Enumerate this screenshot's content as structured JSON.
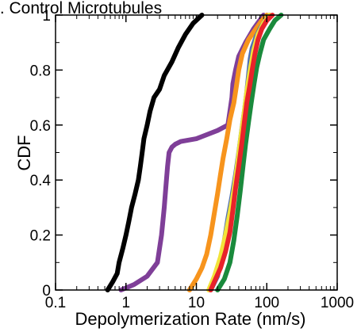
{
  "chart_data": {
    "type": "line",
    "title": "I. Control Microtubules",
    "xlabel": "Depolymerization Rate (nm/s)",
    "ylabel": "CDF",
    "x_scale": "log",
    "xlim": [
      0.1,
      1000
    ],
    "ylim": [
      0,
      1
    ],
    "x_ticks": [
      0.1,
      1,
      10,
      100,
      1000
    ],
    "x_tick_labels": [
      "0.1",
      "1",
      "10",
      "100",
      "1000"
    ],
    "y_ticks": [
      0,
      0.2,
      0.4,
      0.6,
      0.8,
      1
    ],
    "y_tick_labels": [
      "0",
      "0.2",
      "0.4",
      "0.6",
      "0.8",
      "1"
    ],
    "grid": false,
    "series": [
      {
        "color": "#000000",
        "x": [
          0.55,
          0.65,
          0.75,
          0.8,
          0.9,
          1.0,
          1.1,
          1.2,
          1.35,
          1.5,
          1.6,
          1.7,
          1.8,
          2.0,
          2.2,
          2.5,
          3.0,
          3.5,
          4.5,
          5.5,
          7.0,
          9.0,
          12.0
        ],
        "y": [
          0.0,
          0.03,
          0.06,
          0.1,
          0.15,
          0.2,
          0.25,
          0.3,
          0.35,
          0.4,
          0.45,
          0.5,
          0.55,
          0.6,
          0.65,
          0.7,
          0.73,
          0.78,
          0.83,
          0.88,
          0.93,
          0.97,
          1.0
        ]
      },
      {
        "color": "#7f3f98",
        "x": [
          0.85,
          1.3,
          2.0,
          2.8,
          3.2,
          3.5,
          3.7,
          3.9,
          4.1,
          4.5,
          5.0,
          6.0,
          10.0,
          20.0,
          28.0,
          30.0,
          32.0,
          33.0,
          36.0,
          40.0,
          50.0,
          65.0,
          90.0
        ],
        "y": [
          0.0,
          0.02,
          0.05,
          0.1,
          0.2,
          0.3,
          0.38,
          0.45,
          0.5,
          0.52,
          0.53,
          0.54,
          0.55,
          0.58,
          0.6,
          0.65,
          0.7,
          0.75,
          0.8,
          0.85,
          0.9,
          0.95,
          1.0
        ]
      },
      {
        "color": "#f7941d",
        "x": [
          8.0,
          10.0,
          12.0,
          14.0,
          16.0,
          18.0,
          20.0,
          22.0,
          24.0,
          27.0,
          30.0,
          34.0,
          37.0,
          40.0,
          45.0,
          55.0,
          70.0,
          85.0,
          100.0
        ],
        "y": [
          0.0,
          0.04,
          0.08,
          0.13,
          0.2,
          0.28,
          0.35,
          0.42,
          0.48,
          0.55,
          0.62,
          0.68,
          0.74,
          0.8,
          0.86,
          0.91,
          0.95,
          0.98,
          1.0
        ]
      },
      {
        "color": "#4f6fb3",
        "x": [
          16.0,
          20.0,
          22.0,
          25.0,
          28.0,
          32.0,
          36.0,
          40.0,
          44.0,
          48.0,
          52.0,
          55.0,
          58.0,
          62.0,
          70.0,
          80.0,
          95.0,
          110.0
        ],
        "y": [
          0.0,
          0.05,
          0.1,
          0.18,
          0.26,
          0.34,
          0.42,
          0.5,
          0.58,
          0.65,
          0.72,
          0.78,
          0.84,
          0.88,
          0.92,
          0.95,
          0.98,
          1.0
        ]
      },
      {
        "color": "#f2e33a",
        "x": [
          15.0,
          18.0,
          22.0,
          26.0,
          30.0,
          34.0,
          38.0,
          42.0,
          47.0,
          52.0,
          58.0,
          65.0,
          75.0,
          90.0,
          110.0
        ],
        "y": [
          0.0,
          0.05,
          0.12,
          0.2,
          0.28,
          0.36,
          0.45,
          0.54,
          0.63,
          0.72,
          0.8,
          0.87,
          0.93,
          0.97,
          1.0
        ]
      },
      {
        "color": "#1a8a3c",
        "x": [
          20.0,
          25.0,
          30.0,
          34.0,
          38.0,
          42.0,
          46.0,
          50.0,
          55.0,
          60.0,
          66.0,
          72.0,
          80.0,
          90.0,
          110.0,
          130.0,
          160.0
        ],
        "y": [
          0.0,
          0.04,
          0.1,
          0.18,
          0.27,
          0.36,
          0.45,
          0.53,
          0.61,
          0.68,
          0.75,
          0.81,
          0.86,
          0.91,
          0.95,
          0.98,
          1.0
        ]
      },
      {
        "color": "#e8222a",
        "x": [
          16.0,
          18.0,
          22.0,
          26.0,
          30.0,
          33.0,
          36.0,
          40.0,
          44.0,
          48.0,
          52.0,
          57.0,
          62.0,
          68.0,
          75.0,
          85.0,
          100.0,
          120.0
        ],
        "y": [
          0.0,
          0.03,
          0.08,
          0.14,
          0.21,
          0.29,
          0.37,
          0.45,
          0.53,
          0.61,
          0.68,
          0.74,
          0.8,
          0.86,
          0.91,
          0.95,
          0.98,
          1.0
        ]
      }
    ]
  }
}
